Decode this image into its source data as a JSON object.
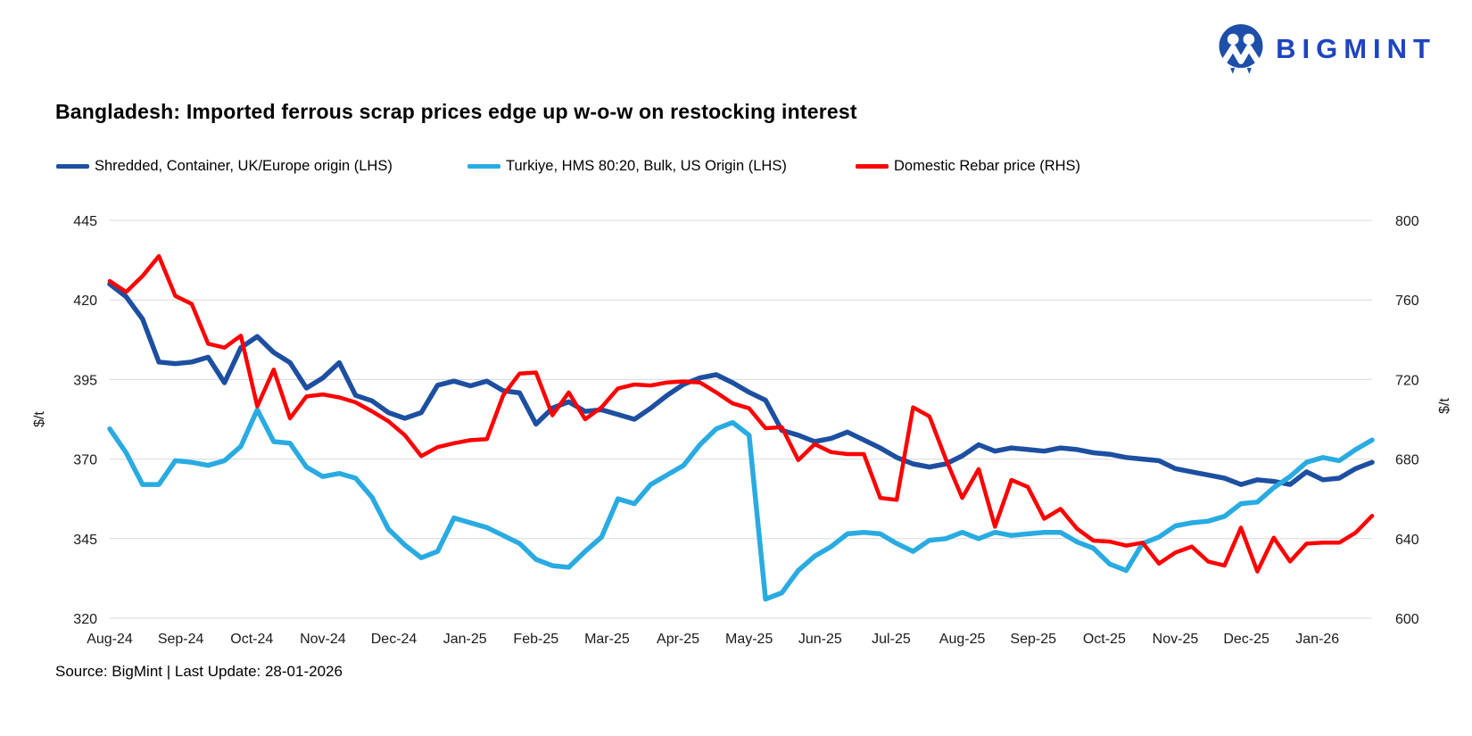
{
  "brand": {
    "logo_text": "BIGMINT",
    "logo_color": "#1d44c0"
  },
  "title": "Bangladesh: Imported ferrous scrap prices edge up w-o-w on restocking interest",
  "source_note": "Source: BigMint | Last Update: 28-01-2026",
  "chart_data": {
    "type": "line",
    "title": "Bangladesh: Imported ferrous scrap prices edge up w-o-w on restocking interest",
    "grid": true,
    "grid_color": "#d9d9d9",
    "legend_position": "top",
    "x_tick_labels": [
      "Aug-24",
      "Sep-24",
      "Oct-24",
      "Nov-24",
      "Dec-24",
      "Jan-25",
      "Feb-25",
      "Mar-25",
      "Apr-25",
      "May-25",
      "Jun-25",
      "Jul-25",
      "Aug-25",
      "Sep-25",
      "Oct-25",
      "Nov-25",
      "Dec-25",
      "Jan-26"
    ],
    "x_frequency": "weekly",
    "left_axis": {
      "label": "$/t",
      "ticks": [
        320,
        345,
        370,
        395,
        420,
        445
      ],
      "range": [
        320,
        445
      ]
    },
    "right_axis": {
      "label": "$/t",
      "ticks": [
        600,
        640,
        680,
        720,
        760,
        800
      ],
      "range": [
        600,
        800
      ]
    },
    "series": [
      {
        "name": "Shredded, Container, UK/Europe origin (LHS)",
        "axis": "left",
        "color": "#1d4fa1",
        "stroke_width": 5.5,
        "values": [
          425,
          421,
          414,
          400.5,
          400,
          400.5,
          402,
          394,
          405,
          408.5,
          403.5,
          400.3,
          392.3,
          395.5,
          400.3,
          390,
          388.3,
          384.6,
          382.8,
          384.6,
          393.2,
          394.5,
          393,
          394.5,
          391.5,
          390.8,
          381,
          386,
          388,
          385,
          385.5,
          384,
          382.5,
          386,
          390,
          393.5,
          395.5,
          396.5,
          394,
          391,
          388.5,
          379,
          377.5,
          375.5,
          376.5,
          378.5,
          376,
          373.5,
          370.5,
          368.5,
          367.5,
          368.5,
          371,
          374.5,
          372.5,
          373.5,
          373,
          372.5,
          373.5,
          373,
          372,
          371.5,
          370.5,
          370,
          369.5,
          367,
          366,
          365,
          364,
          362,
          363.5,
          363,
          362,
          366,
          363.5,
          364,
          367,
          369
        ]
      },
      {
        "name": "Turkiye, HMS 80:20, Bulk, US Origin (LHS)",
        "axis": "left",
        "color": "#29abe2",
        "stroke_width": 5.5,
        "values": [
          379.5,
          372,
          362,
          362,
          369.5,
          369,
          368,
          369.5,
          374,
          385.5,
          375.5,
          375,
          367.5,
          364.5,
          365.5,
          364,
          358,
          348,
          343,
          339,
          341,
          351.5,
          350,
          348.5,
          346,
          343.5,
          338.5,
          336.5,
          336,
          341,
          345.5,
          357.5,
          356,
          362,
          365,
          368,
          374.5,
          379.5,
          381.5,
          377.5,
          326,
          328,
          335,
          339.5,
          342.5,
          346.5,
          347,
          346.5,
          343.5,
          341,
          344.5,
          345,
          347,
          345,
          347,
          346,
          346.5,
          347,
          347,
          344,
          342,
          337,
          335,
          343.5,
          345.5,
          349,
          350,
          350.5,
          352,
          356,
          356.5,
          361,
          364.5,
          369,
          370.5,
          369.5,
          373,
          376
        ]
      },
      {
        "name": "Domestic Rebar price (RHS)",
        "axis": "right",
        "color": "#fe0000",
        "stroke_width": 4.5,
        "values": [
          769.5,
          764,
          772,
          782,
          762,
          758,
          738,
          736,
          742,
          706.5,
          725,
          700.5,
          711.5,
          712.5,
          711,
          708.5,
          704,
          699,
          692,
          681.5,
          686,
          688,
          689.5,
          690,
          712,
          723,
          723.5,
          702,
          713.5,
          700,
          706,
          715.5,
          717.5,
          717,
          718.5,
          719,
          718.5,
          713.5,
          708,
          705.5,
          695.5,
          696,
          679.5,
          687.5,
          683.5,
          682.5,
          682.5,
          660.5,
          659.5,
          706,
          701.5,
          680,
          660.5,
          675,
          646,
          669.5,
          666,
          650,
          655,
          645,
          639,
          638.5,
          636.5,
          638,
          627.5,
          633,
          636,
          628.5,
          626.5,
          645.5,
          623.5,
          640.5,
          628.5,
          637.5,
          638,
          638,
          643,
          651.5
        ]
      }
    ]
  }
}
